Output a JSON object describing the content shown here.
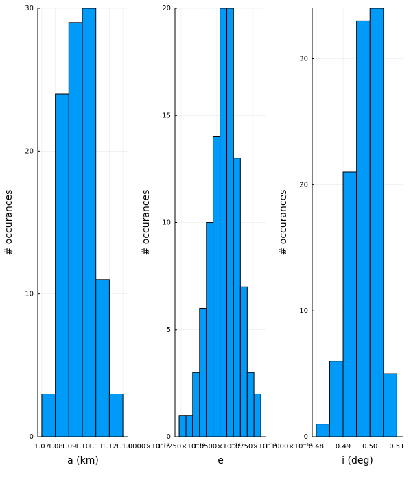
{
  "chart_data": [
    {
      "type": "histogram",
      "xlabel": "a (km)",
      "ylabel": "# occurances",
      "bins": [
        1.07,
        1.08,
        1.09,
        1.1,
        1.11,
        1.12,
        1.13
      ],
      "counts": [
        3,
        24,
        29,
        30,
        11,
        3
      ],
      "color": "#009af9",
      "grid": true,
      "xlim": [
        1.067,
        1.134
      ],
      "ylim": [
        0,
        30
      ],
      "xticks": [
        1.07,
        1.08,
        1.09,
        {
          "value": 1.1,
          "label": "1.10"
        },
        1.11,
        1.12,
        1.13
      ],
      "yticks": [
        0,
        10,
        20,
        30
      ]
    },
    {
      "type": "histogram",
      "xlabel": "e",
      "ylabel": "# occurances",
      "bins": [
        1.0236e-14,
        1.0284e-14,
        1.0331e-14,
        1.0379e-14,
        1.0427e-14,
        1.0474e-14,
        1.0522e-14,
        1.057e-14,
        1.0617e-14,
        1.0665e-14,
        1.0713e-14,
        1.076e-14,
        1.0808e-14
      ],
      "counts": [
        1,
        1,
        3,
        6,
        10,
        14,
        20,
        20,
        13,
        7,
        3,
        2
      ],
      "color": "#009af9",
      "grid": true,
      "xlim": [
        1.0207e-14,
        1.0846e-14
      ],
      "ylim": [
        0,
        20
      ],
      "xticks": [
        {
          "value": 1e-14,
          "label": "1.0000×10⁻¹⁴"
        },
        {
          "value": 1.025e-14,
          "label": "1.0250×10⁻¹⁴"
        },
        {
          "value": 1.05e-14,
          "label": "1.0500×10⁻¹⁴"
        },
        {
          "value": 1.075e-14,
          "label": "1.0750×10⁻¹⁴"
        },
        {
          "value": 1.1e-14,
          "label": "1.1000×10⁻¹⁴"
        }
      ],
      "yticks": [
        0,
        5,
        10,
        15,
        20
      ]
    },
    {
      "type": "histogram",
      "xlabel": "i (deg)",
      "ylabel": "# occurances",
      "bins": [
        0.48,
        0.485,
        0.49,
        0.495,
        0.5,
        0.505,
        0.51
      ],
      "counts": [
        1,
        6,
        21,
        33,
        34,
        5
      ],
      "color": "#009af9",
      "grid": true,
      "xlim": [
        0.4785,
        0.5122
      ],
      "ylim": [
        0,
        34
      ],
      "xticks": [
        0.48,
        0.49,
        {
          "value": 0.5,
          "label": "0.50"
        },
        0.51
      ],
      "yticks": [
        0,
        10,
        20,
        30
      ]
    }
  ]
}
